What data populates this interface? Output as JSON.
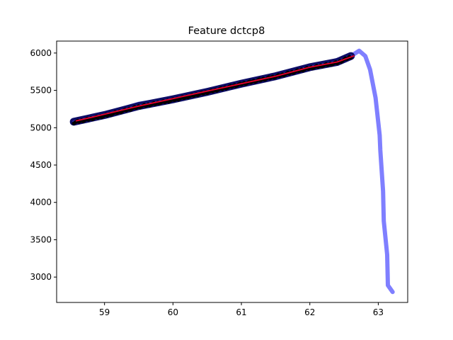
{
  "chart_data": {
    "type": "line",
    "title": "Feature dctcp8",
    "xlabel": "",
    "ylabel": "",
    "xlim": [
      58.3,
      63.43
    ],
    "ylim": [
      2660,
      6160
    ],
    "xticks": [
      59,
      60,
      61,
      62,
      63
    ],
    "yticks": [
      3000,
      3500,
      4000,
      4500,
      5000,
      5500,
      6000
    ],
    "grid": false,
    "legend": "none",
    "series": [
      {
        "style": "thick-translucent-line",
        "color": "#7f7fff",
        "points": [
          [
            58.55,
            5080
          ],
          [
            59.0,
            5180
          ],
          [
            59.5,
            5320
          ],
          [
            60.0,
            5390
          ],
          [
            60.5,
            5490
          ],
          [
            60.8,
            5560
          ],
          [
            61.0,
            5590
          ],
          [
            61.5,
            5680
          ],
          [
            62.0,
            5800
          ],
          [
            62.6,
            5960
          ],
          [
            62.72,
            6030
          ],
          [
            62.81,
            5960
          ],
          [
            62.88,
            5780
          ],
          [
            62.96,
            5400
          ],
          [
            63.02,
            4900
          ],
          [
            63.03,
            4700
          ],
          [
            63.07,
            4150
          ],
          [
            63.08,
            3750
          ],
          [
            63.13,
            3300
          ],
          [
            63.14,
            2890
          ],
          [
            63.21,
            2800
          ]
        ]
      },
      {
        "style": "navy-band",
        "color": "#0d0d66",
        "points": [
          [
            58.55,
            5080
          ],
          [
            59.0,
            5170
          ],
          [
            59.5,
            5290
          ],
          [
            60.0,
            5380
          ],
          [
            60.5,
            5480
          ],
          [
            61.0,
            5590
          ],
          [
            61.5,
            5690
          ],
          [
            62.0,
            5810
          ],
          [
            62.4,
            5880
          ],
          [
            62.6,
            5960
          ]
        ]
      },
      {
        "style": "black-scatter",
        "color": "#000000",
        "points": [
          [
            58.55,
            5070
          ],
          [
            59.0,
            5160
          ],
          [
            59.5,
            5280
          ],
          [
            60.0,
            5370
          ],
          [
            60.5,
            5475
          ],
          [
            61.0,
            5585
          ],
          [
            61.5,
            5685
          ],
          [
            62.0,
            5800
          ],
          [
            62.4,
            5870
          ],
          [
            62.6,
            5950
          ]
        ]
      },
      {
        "style": "red-fit-line",
        "color": "#e8002a",
        "points": [
          [
            58.58,
            5090
          ],
          [
            59.0,
            5180
          ],
          [
            59.5,
            5290
          ],
          [
            60.0,
            5390
          ],
          [
            60.5,
            5490
          ],
          [
            61.0,
            5590
          ],
          [
            61.5,
            5690
          ],
          [
            62.0,
            5810
          ],
          [
            62.4,
            5880
          ],
          [
            62.65,
            5965
          ]
        ]
      }
    ]
  }
}
